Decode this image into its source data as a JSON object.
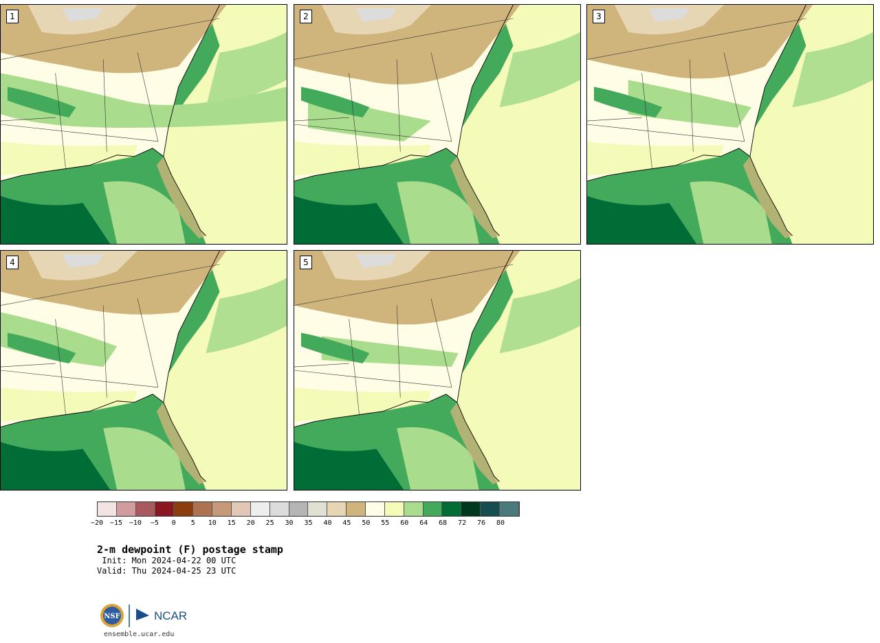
{
  "panels": [
    {
      "label": "1"
    },
    {
      "label": "2"
    },
    {
      "label": "3"
    },
    {
      "label": "4"
    },
    {
      "label": "5"
    }
  ],
  "colorbar": {
    "colors": [
      "#f3e4e4",
      "#d09c9f",
      "#a85a60",
      "#8a1622",
      "#8b3d0e",
      "#ad7350",
      "#c6997b",
      "#e3c7b6",
      "#eeeeee",
      "#dcdcdc",
      "#b5b5b5",
      "#e1e1d3",
      "#e6d6b4",
      "#cfb47c",
      "#fffde6",
      "#f4fbb8",
      "#a9dc8d",
      "#43aa5c",
      "#006d36",
      "#00391c",
      "#164e50",
      "#4a7a7c"
    ],
    "tick_labels": [
      "−20",
      "−15",
      "−10",
      "−5",
      "0",
      "5",
      "10",
      "15",
      "20",
      "25",
      "30",
      "35",
      "40",
      "45",
      "50",
      "55",
      "60",
      "64",
      "68",
      "72",
      "76",
      "80"
    ]
  },
  "map_colors": {
    "tan": "#cfb47c",
    "light_tan": "#e6d6b4",
    "gray": "#dcdcdc",
    "cream": "#fffde6",
    "yellow": "#f4fbb8",
    "light_green": "#a9dc8d",
    "green": "#43aa5c",
    "dark_green": "#006d36",
    "border": "#333333"
  },
  "title": "2-m dewpoint (F) postage stamp",
  "init": " Init: Mon 2024-04-22 00 UTC",
  "valid": "Valid: Thu 2024-04-25 23 UTC",
  "logo": {
    "nsf": "NSF",
    "ncar": "NCAR"
  },
  "footer": "ensemble.ucar.edu"
}
